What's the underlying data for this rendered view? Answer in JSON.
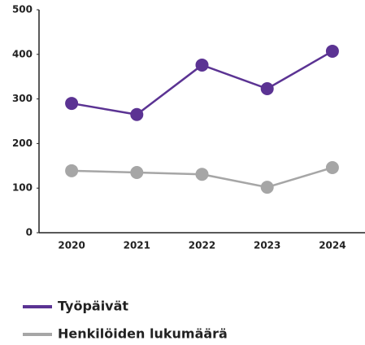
{
  "chart_data": {
    "type": "line",
    "categories": [
      "2020",
      "2021",
      "2022",
      "2023",
      "2024"
    ],
    "series": [
      {
        "name": "Työpäivät",
        "color": "#5b3393",
        "values": [
          290,
          265,
          376,
          323,
          407
        ]
      },
      {
        "name": "Henkilöiden lukumäärä",
        "color": "#a6a6a6",
        "values": [
          139,
          135,
          131,
          102,
          146
        ]
      }
    ],
    "ylim": [
      0,
      500
    ],
    "yticks": [
      0,
      100,
      200,
      300,
      400,
      500
    ]
  }
}
